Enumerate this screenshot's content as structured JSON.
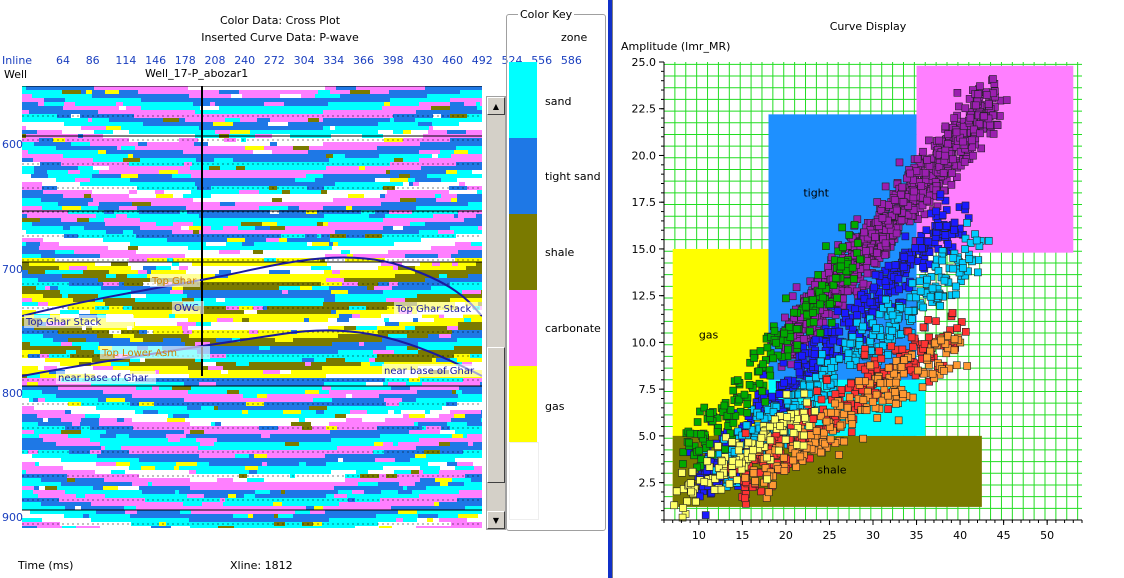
{
  "left": {
    "header_line1": "Color Data: Cross Plot",
    "header_line2": "Inserted Curve Data:  P-wave",
    "inline_label": "Inline",
    "inline_ticks": [
      "64",
      "86",
      "114",
      "146",
      "178",
      "208",
      "240",
      "272",
      "304",
      "334",
      "366",
      "398",
      "430",
      "460",
      "492",
      "524",
      "556",
      "586"
    ],
    "well_label": "Well",
    "well_name": "Well_17-P_abozar1",
    "time_ticks": [
      "600",
      "700",
      "800",
      "900"
    ],
    "horizons": [
      "Top Ghar",
      "OWC",
      "Top Ghar Stack",
      "Top Ghar Stack",
      "Top Lower Asm",
      "near base of Ghar",
      "near base of Ghar"
    ],
    "status_time": "Time (ms)",
    "status_xline": "Xline: 1812"
  },
  "color_key": {
    "title": "Color Key",
    "subtitle": "zone",
    "items": [
      {
        "label": "sand",
        "color": "#00ffff"
      },
      {
        "label": "tight sand",
        "color": "#1e78e6"
      },
      {
        "label": "shale",
        "color": "#7a7a00"
      },
      {
        "label": "carbonate",
        "color": "#ff7fff"
      },
      {
        "label": "gas",
        "color": "#ffff00"
      },
      {
        "label": "",
        "color": "#ffffff"
      }
    ]
  },
  "right": {
    "title": "Curve Display",
    "y_axis_label": "Amplitude (lmr_MR)"
  },
  "chart_data": {
    "type": "scatter",
    "title": "Curve Display",
    "xlabel": "",
    "ylabel": "Amplitude (lmr_MR)",
    "xlim": [
      6,
      54
    ],
    "ylim": [
      0.5,
      25
    ],
    "x_ticks": [
      10,
      15,
      20,
      25,
      30,
      35,
      40,
      45,
      50
    ],
    "y_ticks": [
      2.5,
      5.0,
      7.5,
      10.0,
      12.5,
      15.0,
      17.5,
      20.0,
      22.5,
      25.0
    ],
    "grid": true,
    "zones": [
      {
        "label": "tight",
        "x": [
          18,
          35
        ],
        "y": [
          5,
          22.2
        ],
        "color": "#1e90ff"
      },
      {
        "label": "",
        "x": [
          35,
          53
        ],
        "y": [
          14.8,
          24.8
        ],
        "color": "#ff7fff"
      },
      {
        "label": "gas",
        "x": [
          7,
          18
        ],
        "y": [
          1.2,
          15
        ],
        "color": "#ffff00"
      },
      {
        "label": "shale",
        "x": [
          7,
          42.5
        ],
        "y": [
          1.2,
          5
        ],
        "color": "#7a7a00"
      },
      {
        "label": "",
        "x": [
          18,
          36
        ],
        "y": [
          5,
          8
        ],
        "color": "#00ffff"
      }
    ],
    "series": [
      {
        "color": "#9b1fb0",
        "center": [
          [
            20,
            10
          ],
          [
            44,
            23
          ]
        ],
        "count": 900
      },
      {
        "color": "#1a1aff",
        "center": [
          [
            10,
            2.5
          ],
          [
            40,
            17
          ]
        ],
        "count": 450
      },
      {
        "color": "#00ccff",
        "center": [
          [
            12,
            3
          ],
          [
            42,
            15
          ]
        ],
        "count": 320
      },
      {
        "color": "#00aa00",
        "center": [
          [
            9,
            4
          ],
          [
            28,
            15
          ]
        ],
        "count": 200
      },
      {
        "color": "#ff3333",
        "center": [
          [
            14,
            2.5
          ],
          [
            40,
            11
          ]
        ],
        "count": 260
      },
      {
        "color": "#ff9933",
        "center": [
          [
            16,
            2.6
          ],
          [
            40,
            10
          ]
        ],
        "count": 200
      },
      {
        "color": "#ffff66",
        "center": [
          [
            8,
            2
          ],
          [
            22,
            6
          ]
        ],
        "count": 120
      }
    ]
  }
}
